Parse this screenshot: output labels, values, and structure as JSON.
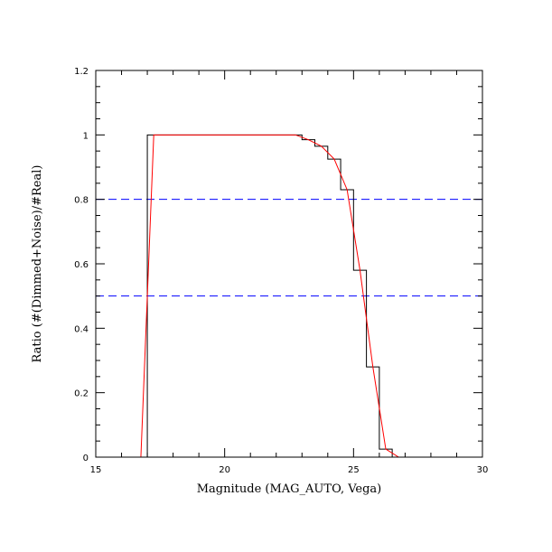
{
  "chart_data": {
    "type": "line",
    "title": "",
    "xlabel": "Magnitude (MAG_AUTO, Vega)",
    "ylabel": "Ratio (#(Dimmed+Noise)/#Real)",
    "xlim": [
      15,
      30
    ],
    "ylim": [
      0,
      1.2
    ],
    "x_ticks": [
      {
        "value": 15,
        "label": "15"
      },
      {
        "value": 20,
        "label": "20"
      },
      {
        "value": 25,
        "label": "25"
      },
      {
        "value": 30,
        "label": "30"
      }
    ],
    "y_ticks": [
      {
        "value": 0,
        "label": "0"
      },
      {
        "value": 0.2,
        "label": "0.2"
      },
      {
        "value": 0.4,
        "label": "0.4"
      },
      {
        "value": 0.6,
        "label": "0.6"
      },
      {
        "value": 0.8,
        "label": "0.8"
      },
      {
        "value": 1.0,
        "label": "1"
      },
      {
        "value": 1.2,
        "label": "1.2"
      }
    ],
    "grid": false,
    "legend": "none",
    "series": [
      {
        "style": "steps-pre",
        "color": "#000000",
        "x": [
          17.0,
          17.0,
          23.0,
          23.0,
          23.5,
          23.5,
          24.0,
          24.0,
          24.5,
          24.5,
          25.0,
          25.0,
          25.5,
          25.5,
          26.0,
          26.0,
          26.5,
          26.5,
          30.0
        ],
        "y": [
          0.0,
          1.0,
          1.0,
          0.985,
          0.985,
          0.965,
          0.965,
          0.925,
          0.925,
          0.83,
          0.83,
          0.58,
          0.58,
          0.28,
          0.28,
          0.025,
          0.025,
          0.0,
          0.0
        ]
      },
      {
        "style": "line",
        "color": "#ff0000",
        "x": [
          16.75,
          17.25,
          22.75,
          23.25,
          23.75,
          24.25,
          24.75,
          25.25,
          25.75,
          26.25,
          26.75,
          30.0
        ],
        "y": [
          0.0,
          1.0,
          1.0,
          0.985,
          0.965,
          0.925,
          0.83,
          0.58,
          0.28,
          0.025,
          0.0,
          0.0
        ]
      }
    ],
    "reference_lines": [
      {
        "y": 0.8,
        "color": "#0000ff",
        "style": "dashed"
      },
      {
        "y": 0.5,
        "color": "#0000ff",
        "style": "dashed"
      }
    ]
  }
}
